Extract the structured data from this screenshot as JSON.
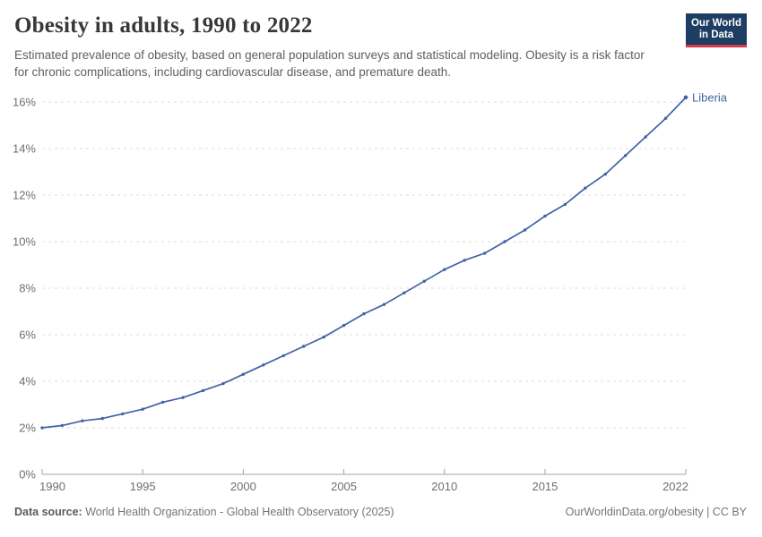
{
  "header": {
    "title": "Obesity in adults, 1990 to 2022",
    "subtitle": "Estimated prevalence of obesity, based on general population surveys and statistical modeling. Obesity is a risk factor for chronic complications, including cardiovascular disease, and premature death.",
    "logo": {
      "line1": "Our World",
      "line2": "in Data"
    }
  },
  "footer": {
    "datasource_label": "Data source:",
    "datasource_value": "World Health Organization - Global Health Observatory (2025)",
    "link": "OurWorldinData.org/obesity | CC BY"
  },
  "colors": {
    "line": "#4263A4",
    "entity_label": "#4263A4",
    "grid": "#dcdcdc",
    "axis": "#a3a3a3",
    "tick_text": "#6f6f6f",
    "logo_bg": "#1d3d63",
    "logo_red": "#d73a49",
    "title_text": "#383838"
  },
  "chart_data": {
    "type": "line",
    "title": "Obesity in adults, 1990 to 2022",
    "entity": "Liberia",
    "x": [
      1990,
      1991,
      1992,
      1993,
      1994,
      1995,
      1996,
      1997,
      1998,
      1999,
      2000,
      2001,
      2002,
      2003,
      2004,
      2005,
      2006,
      2007,
      2008,
      2009,
      2010,
      2011,
      2012,
      2013,
      2014,
      2015,
      2016,
      2017,
      2018,
      2019,
      2020,
      2021,
      2022
    ],
    "series": [
      {
        "name": "Liberia",
        "color": "#4263A4",
        "values": [
          2.0,
          2.1,
          2.3,
          2.4,
          2.6,
          2.8,
          3.1,
          3.3,
          3.6,
          3.9,
          4.3,
          4.7,
          5.1,
          5.5,
          5.9,
          6.4,
          6.9,
          7.3,
          7.8,
          8.3,
          8.8,
          9.2,
          9.5,
          10.0,
          10.5,
          11.1,
          11.6,
          12.3,
          12.9,
          13.7,
          14.5,
          15.3,
          16.2
        ]
      }
    ],
    "xlim": [
      1990,
      2022
    ],
    "ylim": [
      0,
      16
    ],
    "x_ticks": [
      1990,
      1995,
      2000,
      2005,
      2010,
      2015,
      2022
    ],
    "y_ticks": [
      0,
      2,
      4,
      6,
      8,
      10,
      12,
      14,
      16
    ],
    "y_suffix": "%",
    "xlabel": "",
    "ylabel": "",
    "grid": "horizontal-dashed",
    "legend_position": "end-of-line"
  }
}
